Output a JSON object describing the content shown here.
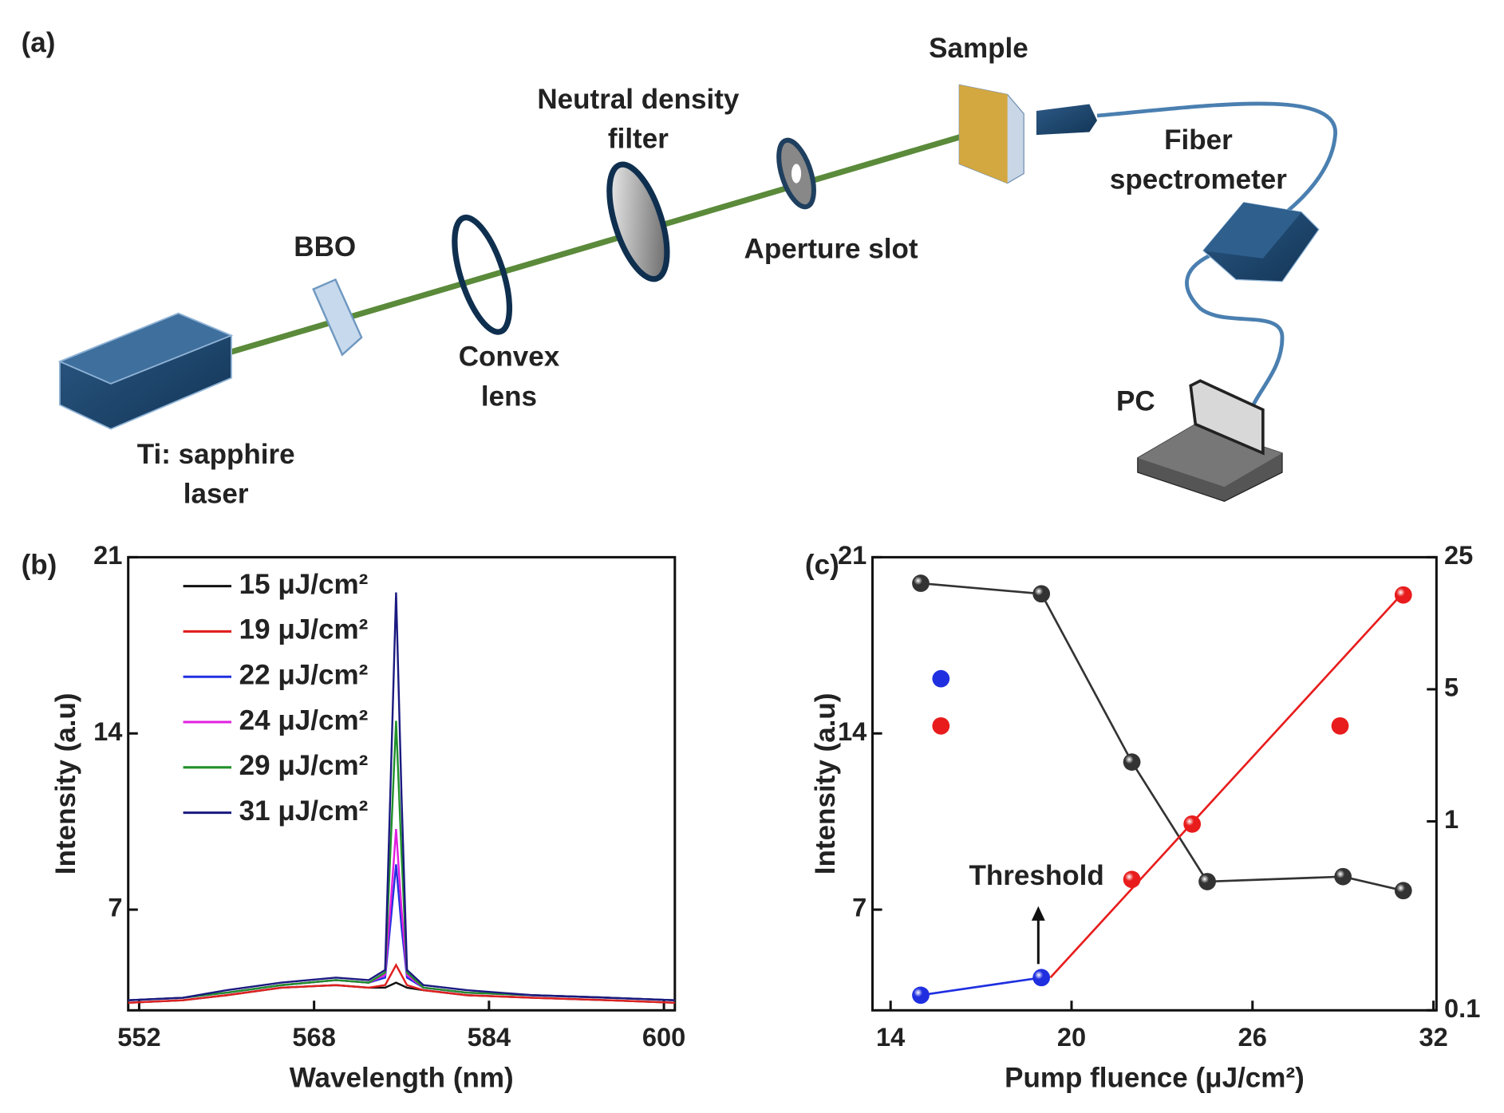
{
  "diagram": {
    "label": "(a)",
    "components": [
      {
        "lines": [
          "Sample"
        ]
      },
      {
        "lines": [
          "Neutral density",
          "filter"
        ]
      },
      {
        "lines": [
          "Fiber",
          "spectrometer"
        ]
      },
      {
        "lines": [
          "BBO"
        ]
      },
      {
        "lines": [
          "Aperture slot"
        ]
      },
      {
        "lines": [
          "Convex",
          "lens"
        ]
      },
      {
        "lines": [
          "PC"
        ]
      },
      {
        "lines": [
          "Ti: sapphire",
          "laser"
        ]
      }
    ]
  },
  "chart_data": [
    {
      "type": "line",
      "panel_label": "(b)",
      "xlabel": "Wavelength (nm)",
      "ylabel": "Intensity (a.u)",
      "xlim": [
        551,
        601
      ],
      "xticks": [
        552,
        568,
        584,
        600
      ],
      "ylim": [
        3,
        21
      ],
      "yticks": [
        7,
        14,
        21
      ],
      "legend": "upper left",
      "x": [
        551,
        556,
        560,
        565,
        570,
        573,
        574.5,
        575,
        575.5,
        576,
        576.5,
        578,
        582,
        588,
        595,
        601
      ],
      "series": [
        {
          "name": "15 μJ/cm²",
          "color": "#111111",
          "values": [
            3.3,
            3.4,
            3.6,
            3.9,
            4.0,
            3.9,
            3.9,
            4.0,
            4.1,
            4.0,
            3.9,
            3.8,
            3.6,
            3.5,
            3.4,
            3.3
          ]
        },
        {
          "name": "19 μJ/cm²",
          "color": "#e02020",
          "values": [
            3.3,
            3.4,
            3.6,
            3.9,
            4.0,
            3.9,
            4.0,
            4.4,
            4.8,
            4.4,
            4.0,
            3.8,
            3.6,
            3.5,
            3.4,
            3.3
          ]
        },
        {
          "name": "22 μJ/cm²",
          "color": "#2030e0",
          "values": [
            3.4,
            3.5,
            3.7,
            4.0,
            4.2,
            4.1,
            4.3,
            6.5,
            8.8,
            6.3,
            4.3,
            3.9,
            3.7,
            3.6,
            3.5,
            3.4
          ]
        },
        {
          "name": "24 μJ/cm²",
          "color": "#e020e0",
          "values": [
            3.4,
            3.5,
            3.7,
            4.0,
            4.2,
            4.1,
            4.4,
            7.2,
            10.2,
            7.0,
            4.4,
            3.9,
            3.7,
            3.6,
            3.5,
            3.4
          ]
        },
        {
          "name": "29 μJ/cm²",
          "color": "#20902a",
          "values": [
            3.4,
            3.5,
            3.7,
            4.0,
            4.2,
            4.1,
            4.5,
            9.5,
            14.5,
            9.2,
            4.5,
            3.9,
            3.7,
            3.6,
            3.5,
            3.4
          ]
        },
        {
          "name": "31 μJ/cm²",
          "color": "#1a1a80",
          "values": [
            3.4,
            3.5,
            3.8,
            4.1,
            4.3,
            4.2,
            4.6,
            12.0,
            19.6,
            11.5,
            4.6,
            4.0,
            3.8,
            3.6,
            3.5,
            3.4
          ]
        }
      ]
    },
    {
      "type": "scatter",
      "panel_label": "(c)",
      "xlabel": "Pump fluence (μJ/cm²)",
      "ylabel": "Intensity (a.u)",
      "annotation": "Threshold",
      "xlim": [
        13.4,
        32.1
      ],
      "xticks": [
        14,
        20,
        26,
        32
      ],
      "ylim": [
        3,
        21
      ],
      "yticks": [
        7,
        14,
        21
      ],
      "y2lim": [
        0.1,
        25
      ],
      "y2ticks": [
        0.1,
        1,
        5,
        25
      ],
      "y2log": true,
      "series": [
        {
          "color": "#333333",
          "axis": "y2",
          "mode": "lines+markers",
          "x": [
            15,
            19,
            22,
            24.5,
            29,
            31
          ],
          "values": [
            18.2,
            16,
            2.06,
            0.48,
            0.51,
            0.43
          ]
        },
        {
          "color": "#1f2fe0",
          "mode": "lines+markers",
          "x": [
            15,
            19
          ],
          "values": [
            3.6,
            4.3
          ]
        },
        {
          "color": "#e81c1c",
          "mode": "lines",
          "x": [
            19.3,
            31
          ],
          "values": [
            4.3,
            19.6
          ]
        },
        {
          "color": "#e81c1c",
          "mode": "markers",
          "x": [
            22,
            24,
            31
          ],
          "values": [
            8.2,
            10.4,
            19.5
          ]
        }
      ]
    }
  ]
}
